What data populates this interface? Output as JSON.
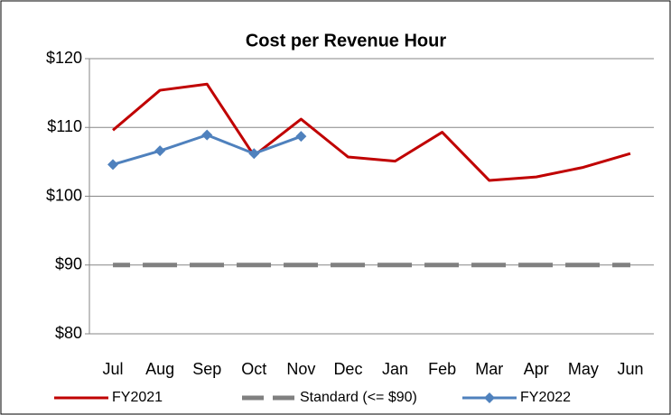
{
  "chart_data": {
    "type": "line",
    "title": "Cost per Revenue Hour",
    "categories": [
      "Jul",
      "Aug",
      "Sep",
      "Oct",
      "Nov",
      "Dec",
      "Jan",
      "Feb",
      "Mar",
      "Apr",
      "May",
      "Jun"
    ],
    "series": [
      {
        "name": "FY2021",
        "color": "#c00000",
        "values": [
          109.6,
          115.4,
          116.3,
          105.9,
          111.2,
          105.7,
          105.1,
          109.3,
          102.3,
          102.8,
          104.2,
          106.2
        ]
      },
      {
        "name": "Standard (<= $90)",
        "color": "#808080",
        "values": [
          90,
          90,
          90,
          90,
          90,
          90,
          90,
          90,
          90,
          90,
          90,
          90
        ]
      },
      {
        "name": "FY2022",
        "color": "#4f81bd",
        "values": [
          104.6,
          106.6,
          108.9,
          106.2,
          108.7,
          null,
          null,
          null,
          null,
          null,
          null,
          null
        ]
      }
    ],
    "ylim": [
      80,
      120
    ],
    "yticks": [
      {
        "value": 80,
        "label": "$80"
      },
      {
        "value": 90,
        "label": "$90"
      },
      {
        "value": 100,
        "label": "$100"
      },
      {
        "value": 110,
        "label": "$110"
      },
      {
        "value": 120,
        "label": "$120"
      }
    ],
    "grid": true
  }
}
